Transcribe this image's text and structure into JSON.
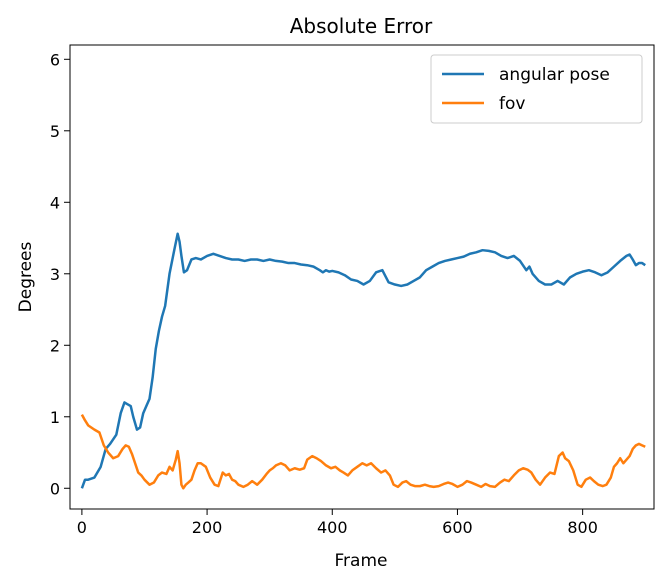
{
  "chart_data": {
    "type": "line",
    "title": "Absolute Error",
    "xlabel": "Frame",
    "ylabel": "Degrees",
    "xlim": [
      -19,
      914
    ],
    "ylim": [
      -0.29,
      6.2
    ],
    "xticks": [
      0,
      200,
      400,
      600,
      800
    ],
    "yticks": [
      0,
      1,
      2,
      3,
      4,
      5,
      6
    ],
    "xtick_labels": [
      "0",
      "200",
      "400",
      "600",
      "800"
    ],
    "ytick_labels": [
      "0",
      "1",
      "2",
      "3",
      "4",
      "5",
      "6"
    ],
    "legend": "top-right",
    "grid": false,
    "series": [
      {
        "name": "angular pose",
        "color": "#1f77b4",
        "x": [
          0,
          5,
          10,
          20,
          30,
          38,
          45,
          55,
          62,
          68,
          72,
          78,
          82,
          88,
          93,
          98,
          103,
          108,
          113,
          118,
          123,
          128,
          133,
          140,
          148,
          153,
          156,
          159,
          163,
          168,
          175,
          182,
          190,
          200,
          210,
          220,
          230,
          240,
          250,
          260,
          270,
          280,
          290,
          300,
          310,
          320,
          330,
          340,
          350,
          360,
          370,
          380,
          385,
          390,
          395,
          400,
          410,
          420,
          430,
          440,
          450,
          460,
          470,
          480,
          490,
          500,
          510,
          520,
          530,
          540,
          550,
          560,
          570,
          580,
          590,
          600,
          610,
          620,
          630,
          640,
          650,
          660,
          670,
          680,
          690,
          700,
          710,
          715,
          720,
          730,
          740,
          750,
          760,
          770,
          780,
          790,
          800,
          810,
          820,
          830,
          840,
          850,
          860,
          870,
          875,
          880,
          885,
          890,
          895,
          900
        ],
        "y": [
          0.0,
          0.12,
          0.12,
          0.15,
          0.3,
          0.55,
          0.62,
          0.75,
          1.05,
          1.2,
          1.18,
          1.15,
          1.0,
          0.82,
          0.85,
          1.05,
          1.15,
          1.25,
          1.55,
          1.95,
          2.2,
          2.4,
          2.55,
          3.0,
          3.35,
          3.56,
          3.45,
          3.25,
          3.02,
          3.05,
          3.2,
          3.22,
          3.2,
          3.25,
          3.28,
          3.25,
          3.22,
          3.2,
          3.2,
          3.18,
          3.2,
          3.2,
          3.18,
          3.2,
          3.18,
          3.17,
          3.15,
          3.15,
          3.13,
          3.12,
          3.1,
          3.05,
          3.02,
          3.05,
          3.03,
          3.04,
          3.02,
          2.98,
          2.92,
          2.9,
          2.85,
          2.9,
          3.02,
          3.05,
          2.88,
          2.85,
          2.83,
          2.85,
          2.9,
          2.95,
          3.05,
          3.1,
          3.15,
          3.18,
          3.2,
          3.22,
          3.24,
          3.28,
          3.3,
          3.33,
          3.32,
          3.3,
          3.25,
          3.22,
          3.25,
          3.18,
          3.05,
          3.1,
          3.0,
          2.9,
          2.85,
          2.85,
          2.9,
          2.85,
          2.95,
          3.0,
          3.03,
          3.05,
          3.02,
          2.98,
          3.02,
          3.1,
          3.18,
          3.25,
          3.27,
          3.2,
          3.12,
          3.15,
          3.15,
          3.12
        ]
      },
      {
        "name": "fov",
        "color": "#ff7f0e",
        "x": [
          0,
          5,
          10,
          20,
          28,
          35,
          42,
          50,
          58,
          65,
          70,
          75,
          80,
          85,
          90,
          95,
          100,
          108,
          115,
          122,
          128,
          135,
          140,
          145,
          150,
          153,
          156,
          159,
          162,
          166,
          170,
          175,
          180,
          185,
          190,
          198,
          205,
          212,
          218,
          225,
          230,
          235,
          240,
          245,
          250,
          258,
          265,
          272,
          280,
          288,
          295,
          300,
          305,
          310,
          318,
          325,
          332,
          340,
          348,
          355,
          360,
          368,
          375,
          382,
          390,
          398,
          405,
          412,
          418,
          425,
          432,
          440,
          448,
          455,
          462,
          470,
          478,
          485,
          492,
          498,
          505,
          512,
          518,
          525,
          532,
          540,
          548,
          555,
          562,
          570,
          578,
          585,
          592,
          600,
          608,
          615,
          622,
          630,
          638,
          645,
          652,
          660,
          668,
          675,
          682,
          690,
          698,
          705,
          712,
          718,
          725,
          732,
          740,
          748,
          755,
          762,
          768,
          772,
          778,
          785,
          792,
          798,
          805,
          812,
          818,
          825,
          832,
          838,
          845,
          850,
          855,
          860,
          865,
          870,
          875,
          880,
          885,
          890,
          895,
          900
        ],
        "y": [
          1.03,
          0.95,
          0.88,
          0.82,
          0.78,
          0.6,
          0.5,
          0.42,
          0.45,
          0.55,
          0.6,
          0.58,
          0.48,
          0.35,
          0.22,
          0.18,
          0.12,
          0.05,
          0.08,
          0.18,
          0.22,
          0.2,
          0.3,
          0.25,
          0.4,
          0.52,
          0.35,
          0.05,
          0.0,
          0.05,
          0.08,
          0.12,
          0.25,
          0.35,
          0.35,
          0.3,
          0.15,
          0.05,
          0.03,
          0.22,
          0.18,
          0.2,
          0.12,
          0.1,
          0.05,
          0.02,
          0.05,
          0.1,
          0.05,
          0.12,
          0.2,
          0.25,
          0.28,
          0.32,
          0.35,
          0.32,
          0.25,
          0.28,
          0.26,
          0.28,
          0.4,
          0.45,
          0.42,
          0.38,
          0.32,
          0.28,
          0.3,
          0.25,
          0.22,
          0.18,
          0.25,
          0.3,
          0.35,
          0.32,
          0.35,
          0.28,
          0.22,
          0.25,
          0.18,
          0.05,
          0.02,
          0.08,
          0.1,
          0.05,
          0.03,
          0.03,
          0.05,
          0.03,
          0.02,
          0.03,
          0.06,
          0.08,
          0.06,
          0.02,
          0.05,
          0.1,
          0.08,
          0.05,
          0.02,
          0.06,
          0.03,
          0.02,
          0.08,
          0.12,
          0.1,
          0.18,
          0.25,
          0.28,
          0.26,
          0.22,
          0.12,
          0.05,
          0.15,
          0.22,
          0.2,
          0.45,
          0.5,
          0.42,
          0.38,
          0.25,
          0.05,
          0.02,
          0.12,
          0.15,
          0.1,
          0.05,
          0.03,
          0.05,
          0.15,
          0.3,
          0.35,
          0.42,
          0.35,
          0.4,
          0.45,
          0.55,
          0.6,
          0.62,
          0.6,
          0.58
        ]
      }
    ]
  }
}
